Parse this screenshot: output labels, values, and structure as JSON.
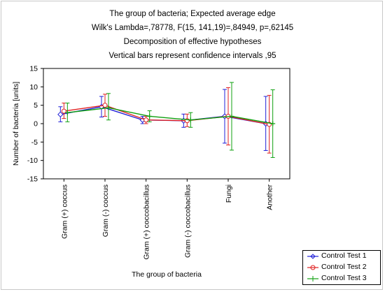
{
  "chart_data": {
    "type": "line",
    "title_lines": [
      "The group of bacteria; Expected average edge",
      "Wilk's Lambda=,78778, F(15, 141,19)=,84949, p=,62145",
      "Decomposition of effective hypotheses",
      "Vertical bars represent confidence intervals ,95"
    ],
    "xlabel": "The group of bacteria",
    "ylabel": "Number of bacteria [units]",
    "categories": [
      "Gram (+) coccus",
      "Gram (-) coccus",
      "Gram (+) coccobacillus",
      "Gram (-) coccobacillus",
      "Fungi",
      "Another"
    ],
    "ylim": [
      -15,
      15
    ],
    "yticks": [
      "15",
      "10",
      "5",
      "0",
      "-5",
      "-10",
      "-15"
    ],
    "grid": false,
    "legend_position": "bottom-right",
    "series": [
      {
        "name": "Control Test 1",
        "color": "#2020d8",
        "marker": "diamond",
        "values": [
          2.5,
          4.6,
          1.0,
          0.8,
          2.0,
          0.0
        ],
        "lower": [
          0.5,
          1.8,
          0.0,
          -1.0,
          -5.3,
          -7.3
        ],
        "upper": [
          4.6,
          7.4,
          2.0,
          2.6,
          9.3,
          7.4
        ]
      },
      {
        "name": "Control Test 2",
        "color": "#e02020",
        "marker": "circle",
        "values": [
          3.4,
          5.0,
          1.0,
          0.8,
          2.0,
          -0.2
        ],
        "lower": [
          1.4,
          2.0,
          0.0,
          -0.8,
          -5.8,
          -8.0
        ],
        "upper": [
          5.6,
          8.0,
          2.0,
          2.6,
          9.8,
          7.7
        ]
      },
      {
        "name": "Control Test 3",
        "color": "#10a010",
        "marker": "plus",
        "values": [
          3.0,
          4.3,
          2.0,
          1.0,
          2.0,
          0.0
        ],
        "lower": [
          0.5,
          1.0,
          0.5,
          -1.0,
          -7.2,
          -9.2
        ],
        "upper": [
          5.6,
          8.2,
          3.5,
          3.0,
          11.2,
          9.2
        ]
      }
    ]
  }
}
